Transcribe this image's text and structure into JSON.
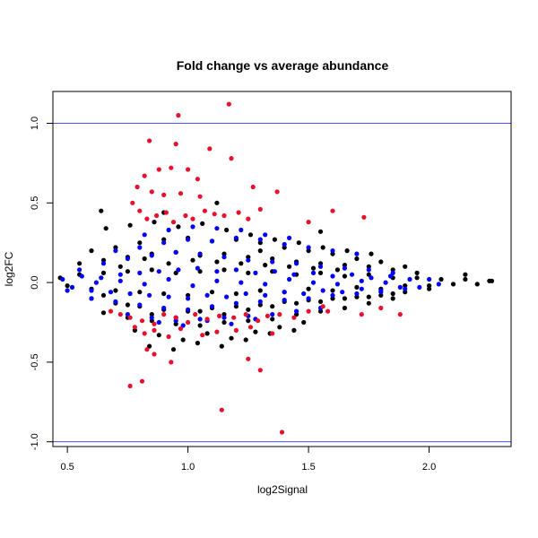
{
  "chart_data": {
    "type": "scatter",
    "title": "Fold change vs average abundance",
    "xlabel": "log2Signal",
    "ylabel": "log2FC",
    "xlim": [
      0.44,
      2.34
    ],
    "ylim": [
      -1.03,
      1.2
    ],
    "x_ticks": [
      0.5,
      1.0,
      1.5,
      2.0
    ],
    "x_tick_labels": [
      "0.5",
      "1.0",
      "1.5",
      "2.0"
    ],
    "y_ticks": [
      -1.0,
      -0.5,
      0.0,
      0.5,
      1.0
    ],
    "y_tick_labels": [
      "-1.0",
      "-0.5",
      "0.0",
      "0.5",
      "1.0"
    ],
    "grid": false,
    "legend": "none",
    "reference_lines": [
      {
        "axis": "y",
        "value": 1.0,
        "color": "#4d4dff"
      },
      {
        "axis": "y",
        "value": -1.0,
        "color": "#4d4dff"
      }
    ],
    "series": [
      {
        "color": "#000000",
        "x": [
          0.47,
          0.5,
          0.55,
          0.6,
          0.65,
          0.7,
          0.75,
          0.8,
          0.85,
          0.9,
          0.95,
          1.0,
          1.05,
          1.1,
          1.15,
          1.2,
          1.25,
          1.3,
          1.35,
          1.4,
          1.45,
          1.5,
          1.55,
          1.6,
          1.65,
          1.7,
          1.75,
          1.8,
          1.85,
          1.9,
          1.95,
          2.0,
          2.05,
          2.1,
          2.15,
          2.2,
          2.25,
          0.55,
          0.6,
          0.65,
          0.7,
          0.75,
          0.8,
          0.85,
          0.9,
          0.95,
          1.0,
          1.05,
          1.1,
          1.15,
          1.2,
          1.25,
          1.3,
          1.35,
          1.4,
          1.45,
          1.5,
          1.55,
          1.6,
          1.65,
          1.7,
          1.75,
          1.8,
          1.85,
          1.9,
          1.95,
          2.0,
          0.6,
          0.65,
          0.7,
          0.75,
          0.8,
          0.85,
          0.9,
          0.95,
          1.0,
          1.05,
          1.1,
          1.15,
          1.2,
          1.25,
          1.3,
          1.35,
          1.4,
          1.45,
          1.5,
          1.55,
          1.6,
          1.65,
          1.7,
          1.75,
          1.8,
          1.85,
          1.9,
          0.65,
          0.75,
          0.85,
          0.95,
          1.05,
          1.15,
          1.25,
          1.35,
          1.45,
          1.55,
          1.65,
          1.75,
          1.85,
          0.72,
          0.82,
          0.92,
          1.02,
          1.12,
          1.22,
          1.32,
          1.42,
          1.52,
          1.62,
          0.78,
          0.88,
          0.98,
          1.08,
          1.18,
          1.28,
          1.38,
          1.48,
          0.66,
          0.76,
          0.86,
          0.96,
          1.06,
          1.16,
          1.26,
          1.36,
          1.46,
          1.56,
          1.66,
          1.76,
          0.84,
          0.94,
          1.04,
          1.14,
          1.24,
          1.34,
          1.44,
          0.64,
          1.3,
          1.55,
          2.26,
          2.15,
          0.9,
          1.12
        ],
        "y": [
          0.03,
          -0.02,
          0.05,
          -0.04,
          0.06,
          -0.05,
          0.07,
          -0.06,
          0.08,
          -0.07,
          0.06,
          -0.08,
          0.07,
          -0.06,
          0.08,
          -0.07,
          0.06,
          -0.05,
          0.07,
          -0.06,
          0.05,
          -0.04,
          0.06,
          -0.05,
          0.04,
          -0.03,
          0.05,
          -0.04,
          0.03,
          -0.02,
          0.03,
          -0.02,
          0.02,
          -0.01,
          0.02,
          -0.01,
          0.01,
          0.12,
          -0.1,
          0.14,
          -0.13,
          0.16,
          -0.15,
          0.18,
          -0.17,
          0.19,
          -0.18,
          0.17,
          -0.16,
          0.18,
          -0.15,
          0.16,
          -0.14,
          0.15,
          -0.12,
          0.13,
          -0.11,
          0.12,
          -0.1,
          0.11,
          -0.09,
          0.1,
          -0.08,
          0.08,
          -0.06,
          0.06,
          -0.04,
          0.2,
          -0.19,
          0.22,
          -0.22,
          0.25,
          -0.24,
          0.27,
          -0.26,
          0.28,
          -0.27,
          0.26,
          -0.25,
          0.27,
          -0.24,
          0.25,
          -0.23,
          0.22,
          -0.2,
          0.2,
          -0.18,
          0.18,
          -0.16,
          0.15,
          -0.13,
          0.13,
          -0.1,
          0.1,
          -0.08,
          -0.14,
          -0.2,
          -0.22,
          -0.18,
          -0.2,
          -0.17,
          -0.15,
          -0.13,
          -0.12,
          -0.1,
          -0.09,
          -0.07,
          0.1,
          0.15,
          0.12,
          0.14,
          0.13,
          0.12,
          0.11,
          0.1,
          0.09,
          0.08,
          -0.3,
          -0.33,
          -0.36,
          -0.32,
          -0.35,
          -0.31,
          -0.28,
          -0.25,
          0.34,
          0.36,
          0.38,
          0.35,
          0.37,
          0.33,
          0.3,
          0.27,
          0.25,
          0.22,
          0.2,
          0.18,
          -0.4,
          -0.42,
          -0.38,
          -0.4,
          -0.36,
          -0.32,
          -0.3,
          0.45,
          0.2,
          0.32,
          0.01,
          0.05,
          0.44,
          0.5
        ]
      },
      {
        "color": "#0000ff",
        "x": [
          0.48,
          0.52,
          0.56,
          0.6,
          0.64,
          0.68,
          0.72,
          0.76,
          0.8,
          0.84,
          0.88,
          0.92,
          0.96,
          1.0,
          1.04,
          1.08,
          1.12,
          1.16,
          1.2,
          1.24,
          1.28,
          1.32,
          1.36,
          1.4,
          1.44,
          1.48,
          1.52,
          1.56,
          1.6,
          1.64,
          1.68,
          1.72,
          1.76,
          1.8,
          1.84,
          1.88,
          1.92,
          1.96,
          2.0,
          2.04,
          0.5,
          0.55,
          0.6,
          0.65,
          0.7,
          0.75,
          0.8,
          0.85,
          0.9,
          0.95,
          1.0,
          1.05,
          1.1,
          1.15,
          1.2,
          1.25,
          1.3,
          1.35,
          1.4,
          1.45,
          1.5,
          1.55,
          1.6,
          1.65,
          1.7,
          1.75,
          1.8,
          1.85,
          1.9,
          0.7,
          0.8,
          0.9,
          1.0,
          1.1,
          1.2,
          1.3,
          1.4,
          1.5,
          1.6,
          1.7,
          0.75,
          0.85,
          0.95,
          1.05,
          1.15,
          1.25,
          1.35,
          1.45,
          1.55,
          0.82,
          0.92,
          1.02,
          1.12,
          1.22,
          1.32,
          1.42,
          0.88,
          0.98,
          1.08,
          1.18,
          1.28,
          0.62,
          0.72,
          0.82,
          0.92,
          1.02,
          1.12,
          1.22,
          1.32,
          1.42,
          1.52,
          1.62,
          1.72,
          1.82
        ],
        "y": [
          0.02,
          -0.03,
          0.04,
          -0.05,
          0.03,
          -0.06,
          0.05,
          -0.07,
          0.06,
          -0.08,
          0.07,
          -0.09,
          0.08,
          -0.1,
          0.09,
          -0.08,
          0.07,
          -0.09,
          0.08,
          -0.07,
          0.06,
          -0.08,
          0.07,
          -0.06,
          0.05,
          -0.07,
          0.06,
          -0.05,
          0.04,
          -0.06,
          0.05,
          -0.04,
          0.03,
          -0.05,
          0.04,
          -0.03,
          0.02,
          -0.03,
          0.02,
          -0.01,
          -0.05,
          0.08,
          -0.1,
          0.12,
          -0.12,
          0.15,
          -0.14,
          0.17,
          -0.16,
          0.19,
          -0.17,
          0.18,
          -0.15,
          0.16,
          -0.13,
          0.14,
          -0.12,
          0.13,
          -0.11,
          0.12,
          -0.1,
          0.1,
          -0.08,
          0.09,
          -0.07,
          0.08,
          -0.06,
          0.06,
          -0.04,
          0.2,
          0.22,
          0.25,
          0.27,
          0.26,
          0.28,
          0.27,
          0.24,
          0.22,
          0.2,
          0.18,
          -0.2,
          -0.22,
          -0.24,
          -0.23,
          -0.22,
          -0.21,
          -0.2,
          -0.18,
          -0.16,
          0.3,
          0.33,
          0.35,
          0.34,
          0.33,
          0.3,
          0.28,
          -0.25,
          -0.27,
          -0.24,
          -0.26,
          -0.23,
          0.0,
          0.01,
          -0.01,
          0.02,
          -0.02,
          0.01,
          0.0,
          -0.01,
          0.02,
          0.0,
          -0.01,
          0.01,
          0.0
        ]
      },
      {
        "color": "#e8112d",
        "x": [
          0.96,
          1.17,
          0.84,
          0.95,
          1.09,
          0.88,
          0.82,
          0.93,
          1.0,
          1.04,
          0.79,
          0.85,
          0.9,
          0.97,
          1.05,
          1.18,
          1.27,
          1.37,
          1.6,
          1.73,
          0.77,
          0.8,
          0.83,
          0.87,
          0.91,
          0.94,
          0.99,
          1.02,
          1.07,
          1.11,
          1.15,
          1.21,
          1.25,
          1.3,
          0.68,
          0.72,
          0.76,
          0.81,
          0.86,
          0.9,
          0.95,
          1.0,
          1.03,
          1.08,
          1.13,
          1.19,
          1.24,
          1.29,
          1.33,
          1.38,
          1.44,
          1.5,
          1.56,
          0.78,
          0.82,
          0.86,
          0.92,
          0.97,
          1.06,
          1.12,
          1.2,
          1.26,
          1.35,
          1.58,
          1.72,
          1.8,
          1.88,
          0.83,
          0.86,
          0.93,
          1.25,
          1.3,
          0.76,
          0.81,
          1.14,
          1.39,
          1.5
        ],
        "y": [
          1.05,
          1.12,
          0.89,
          0.87,
          0.84,
          0.71,
          0.67,
          0.72,
          0.71,
          0.65,
          0.6,
          0.57,
          0.55,
          0.56,
          0.54,
          0.78,
          0.6,
          0.57,
          0.45,
          0.41,
          0.5,
          0.45,
          0.4,
          0.42,
          0.44,
          0.38,
          0.42,
          0.4,
          0.45,
          0.43,
          0.42,
          0.44,
          0.4,
          0.46,
          -0.18,
          -0.2,
          -0.22,
          -0.24,
          -0.26,
          -0.2,
          -0.22,
          -0.25,
          -0.2,
          -0.23,
          -0.21,
          -0.22,
          -0.2,
          -0.24,
          -0.21,
          -0.2,
          -0.22,
          -0.18,
          -0.15,
          -0.28,
          -0.32,
          -0.3,
          -0.34,
          -0.29,
          -0.33,
          -0.31,
          -0.3,
          -0.28,
          -0.32,
          -0.18,
          -0.2,
          -0.16,
          -0.2,
          -0.42,
          -0.45,
          -0.5,
          -0.48,
          -0.55,
          -0.65,
          -0.62,
          -0.8,
          -0.94,
          0.38
        ]
      }
    ]
  }
}
